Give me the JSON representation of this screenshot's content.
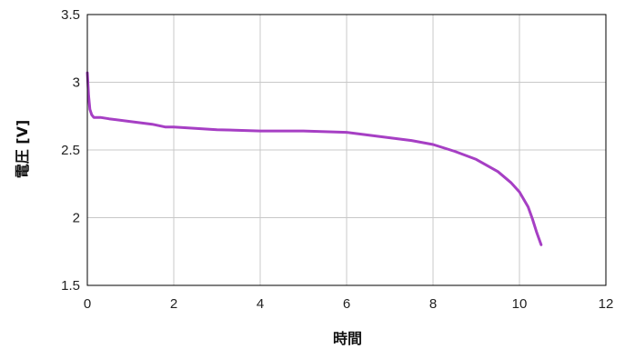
{
  "chart_data": {
    "type": "line",
    "title": "",
    "xlabel": "時間",
    "ylabel": "電圧 [V]",
    "xlim": [
      0,
      12
    ],
    "ylim": [
      1.5,
      3.5
    ],
    "x_ticks": [
      "0",
      "2",
      "4",
      "6",
      "8",
      "10",
      "12"
    ],
    "y_ticks": [
      "1.5",
      "2",
      "2.5",
      "3",
      "3.5"
    ],
    "grid": true,
    "legend": "none",
    "colors": {
      "series": "#a63fc4",
      "grid": "#c8c8c8",
      "frame": "#000000"
    },
    "series": [
      {
        "x": [
          0,
          0.03,
          0.06,
          0.1,
          0.15,
          0.3,
          0.5,
          1.0,
          1.5,
          1.8,
          2.0,
          3.0,
          4.0,
          5.0,
          6.0,
          6.5,
          7.0,
          7.5,
          8.0,
          8.5,
          9.0,
          9.5,
          9.8,
          10.0,
          10.2,
          10.3,
          10.4,
          10.5
        ],
        "y": [
          3.07,
          2.9,
          2.8,
          2.76,
          2.74,
          2.74,
          2.73,
          2.71,
          2.69,
          2.67,
          2.67,
          2.65,
          2.64,
          2.64,
          2.63,
          2.61,
          2.59,
          2.57,
          2.54,
          2.49,
          2.43,
          2.34,
          2.26,
          2.19,
          2.08,
          1.99,
          1.89,
          1.8
        ]
      }
    ]
  }
}
